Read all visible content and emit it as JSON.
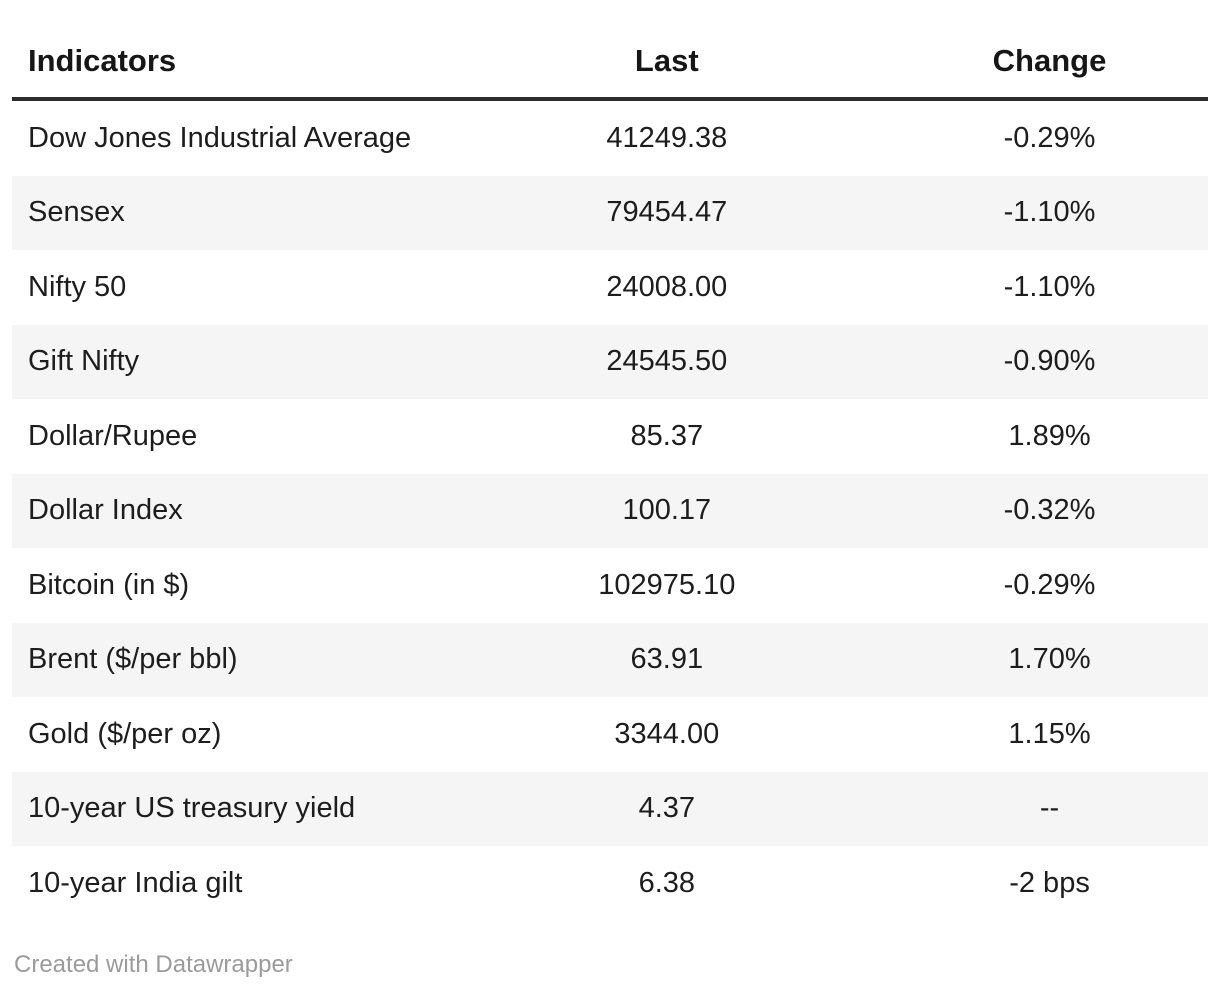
{
  "table": {
    "columns": [
      {
        "label": "Indicators",
        "align": "left"
      },
      {
        "label": "Last",
        "align": "center"
      },
      {
        "label": "Change",
        "align": "center"
      }
    ],
    "rows": [
      {
        "indicator": "Dow Jones Industrial Average",
        "last": "41249.38",
        "change": "-0.29%"
      },
      {
        "indicator": "Sensex",
        "last": "79454.47",
        "change": "-1.10%"
      },
      {
        "indicator": "Nifty 50",
        "last": "24008.00",
        "change": "-1.10%"
      },
      {
        "indicator": "Gift Nifty",
        "last": "24545.50",
        "change": "-0.90%"
      },
      {
        "indicator": "Dollar/Rupee",
        "last": "85.37",
        "change": "1.89%"
      },
      {
        "indicator": "Dollar Index",
        "last": "100.17",
        "change": "-0.32%"
      },
      {
        "indicator": "Bitcoin (in $)",
        "last": "102975.10",
        "change": "-0.29%"
      },
      {
        "indicator": "Brent ($/per bbl)",
        "last": "63.91",
        "change": "1.70%"
      },
      {
        "indicator": "Gold ($/per oz)",
        "last": "3344.00",
        "change": "1.15%"
      },
      {
        "indicator": "10-year US treasury yield",
        "last": "4.37",
        "change": "--"
      },
      {
        "indicator": "10-year India gilt",
        "last": "6.38",
        "change": "-2 bps"
      }
    ]
  },
  "footer": {
    "credit": "Created with Datawrapper"
  },
  "colors": {
    "stripe": "#f5f5f5",
    "header_border": "#2d2d2d",
    "body_text": "#1d1d1d",
    "header_text": "#161616",
    "credit_text": "#9b9b9b"
  }
}
